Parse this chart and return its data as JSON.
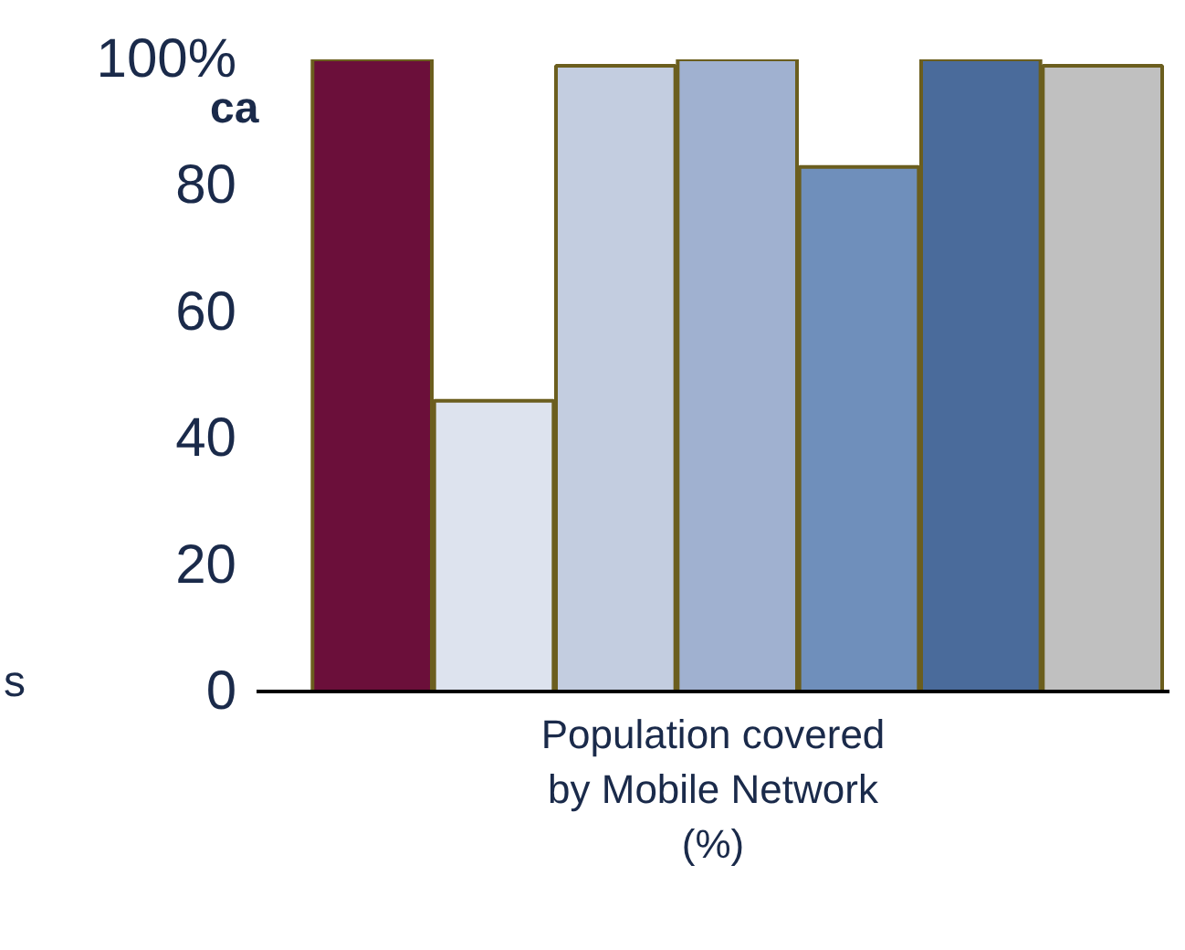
{
  "chart_data": {
    "type": "bar",
    "xlabel": "Population covered\nby Mobile Network\n(%)",
    "categories": [
      null,
      null,
      null,
      null,
      null,
      null,
      null
    ],
    "values": [
      100,
      46,
      99,
      100,
      83,
      100,
      99
    ],
    "colors": [
      "#6b0f3a",
      "#dde3ee",
      "#c3cde0",
      "#a0b1d0",
      "#6f8fbb",
      "#4a6b9b",
      "#c0c0c0"
    ],
    "ylim": [
      0,
      100
    ],
    "yticks": [
      0,
      20,
      40,
      60,
      80,
      {
        "value": 100,
        "label": "100%"
      }
    ],
    "tick_labels": "y",
    "grid": false,
    "annotations": [
      "ca",
      "s"
    ]
  }
}
